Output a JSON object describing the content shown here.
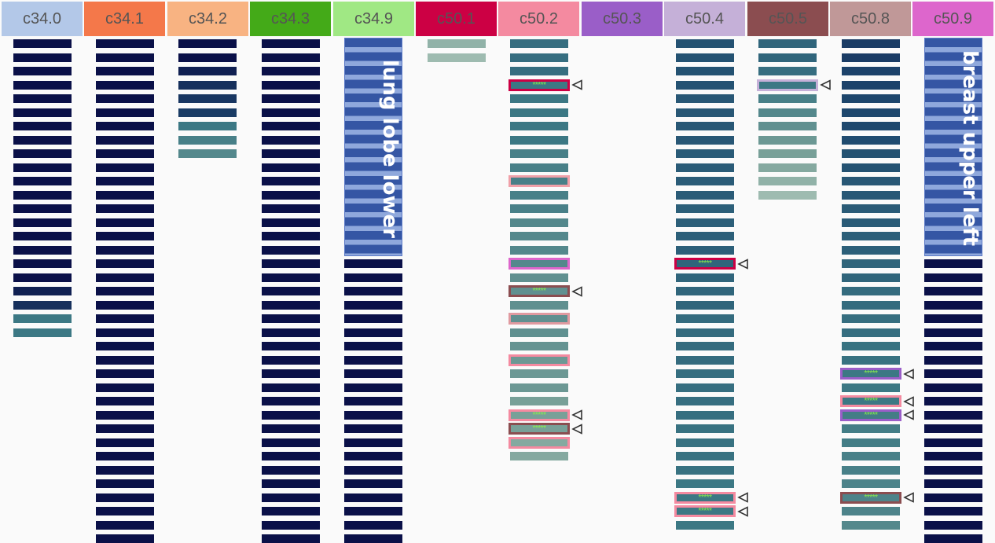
{
  "chart_data": {
    "type": "heatmap",
    "title": "",
    "columns": [
      {
        "code": "c34.0",
        "color": "#b3c8e8",
        "cells": [
          0,
          0,
          0,
          0,
          0,
          0,
          0,
          0,
          0,
          0,
          0,
          0,
          0,
          0,
          0,
          0,
          0,
          0,
          0.05,
          0.1,
          0.55,
          0.55
        ],
        "highlights": []
      },
      {
        "code": "c34.1",
        "color": "#f4784a",
        "cells": [
          0,
          0,
          0,
          0,
          0,
          0,
          0,
          0,
          0,
          0,
          0,
          0,
          0,
          0,
          0,
          0,
          0,
          0,
          0,
          0,
          0,
          0,
          0,
          0,
          0,
          0,
          0,
          0,
          0,
          0,
          0,
          0,
          0,
          0,
          0,
          0,
          0
        ],
        "highlights": []
      },
      {
        "code": "c34.2",
        "color": "#f8b382",
        "cells": [
          0,
          0,
          0.05,
          0.1,
          0.15,
          0.2,
          0.55,
          0.6,
          0.65
        ],
        "highlights": []
      },
      {
        "code": "c34.3",
        "color": "#44aa18",
        "cells": [
          0,
          0,
          0,
          0,
          0,
          0,
          0,
          0,
          0,
          0,
          0,
          0,
          0,
          0,
          0,
          0,
          0,
          0,
          0,
          0,
          0,
          0,
          0,
          0,
          0,
          0,
          0,
          0,
          0,
          0,
          0,
          0,
          0,
          0,
          0,
          0,
          0
        ],
        "highlights": []
      },
      {
        "code": "c34.9",
        "color": "#a0e884",
        "cells": [
          0,
          0,
          0,
          0,
          0,
          0,
          0,
          0,
          0,
          0,
          0,
          0,
          0,
          0,
          0,
          0,
          0,
          0,
          0,
          0,
          0,
          0,
          0,
          0,
          0,
          0,
          0,
          0,
          0,
          0,
          0,
          0,
          0,
          0,
          0,
          0,
          0
        ],
        "highlights": [],
        "group_label": {
          "text": "lung lobe lower",
          "rows": 16
        }
      },
      {
        "code": "c50.1",
        "color": "#cc0044",
        "cells": [
          0.9,
          0.95
        ],
        "highlights": []
      },
      {
        "code": "c50.2",
        "color": "#f48aa0",
        "cells": [
          0.5,
          0.5,
          0.5,
          0.55,
          0.55,
          0.55,
          0.55,
          0.55,
          0.6,
          0.6,
          0.6,
          0.6,
          0.6,
          0.65,
          0.65,
          0.65,
          0.65,
          0.7,
          0.7,
          0.7,
          0.7,
          0.7,
          0.72,
          0.75,
          0.75,
          0.75,
          0.8,
          0.8,
          0.8,
          0.85,
          0.85
        ],
        "highlights": [
          {
            "row": 3,
            "border": "#cc0044",
            "stars": "*****",
            "marker": true
          },
          {
            "row": 10,
            "border": "#f0a0a8",
            "stars": "",
            "marker": false
          },
          {
            "row": 16,
            "border": "#dd66cc",
            "stars": "",
            "marker": false
          },
          {
            "row": 18,
            "border": "#8b4d50",
            "stars": "*****",
            "marker": true
          },
          {
            "row": 20,
            "border": "#e09aa0",
            "stars": "",
            "marker": false
          },
          {
            "row": 23,
            "border": "#f48aa0",
            "stars": "",
            "marker": false
          },
          {
            "row": 27,
            "border": "#f48aa0",
            "stars": "*****",
            "marker": true
          },
          {
            "row": 28,
            "border": "#8b4d50",
            "stars": "*****",
            "marker": true
          },
          {
            "row": 29,
            "border": "#f48aa0",
            "stars": "",
            "marker": false
          }
        ]
      },
      {
        "code": "c50.3",
        "color": "#9a5ec8",
        "cells": [],
        "highlights": []
      },
      {
        "code": "c50.4",
        "color": "#c5b0d8",
        "cells": [
          0.35,
          0.35,
          0.35,
          0.35,
          0.38,
          0.38,
          0.38,
          0.38,
          0.4,
          0.4,
          0.4,
          0.4,
          0.42,
          0.42,
          0.42,
          0.42,
          0.45,
          0.45,
          0.45,
          0.45,
          0.48,
          0.48,
          0.48,
          0.48,
          0.5,
          0.5,
          0.5,
          0.5,
          0.52,
          0.52,
          0.52,
          0.52,
          0.55,
          0.55,
          0.55,
          0.55
        ],
        "highlights": [
          {
            "row": 16,
            "border": "#cc0044",
            "stars": "*****",
            "marker": true
          },
          {
            "row": 33,
            "border": "#f48aa0",
            "stars": "*****",
            "marker": true
          },
          {
            "row": 34,
            "border": "#f48aa0",
            "stars": "*****",
            "marker": true
          }
        ]
      },
      {
        "code": "c50.5",
        "color": "#8b4d50",
        "cells": [
          0.45,
          0.45,
          0.5,
          0.55,
          0.6,
          0.65,
          0.7,
          0.75,
          0.8,
          0.85,
          0.9,
          0.95
        ],
        "highlights": [
          {
            "row": 3,
            "border": "#c5b0d8",
            "stars": "",
            "marker": true
          }
        ]
      },
      {
        "code": "c50.8",
        "color": "#c09898",
        "cells": [
          0.2,
          0.2,
          0.25,
          0.25,
          0.28,
          0.3,
          0.3,
          0.32,
          0.35,
          0.35,
          0.38,
          0.38,
          0.4,
          0.4,
          0.42,
          0.42,
          0.45,
          0.45,
          0.48,
          0.48,
          0.5,
          0.5,
          0.52,
          0.52,
          0.55,
          0.55,
          0.55,
          0.58,
          0.58,
          0.58,
          0.6,
          0.6,
          0.62,
          0.62,
          0.62,
          0.65
        ],
        "highlights": [
          {
            "row": 24,
            "border": "#9a5ec8",
            "stars": "*****",
            "marker": true
          },
          {
            "row": 26,
            "border": "#f48aa0",
            "stars": "*****",
            "marker": true
          },
          {
            "row": 27,
            "border": "#9a5ec8",
            "stars": "*****",
            "marker": true
          },
          {
            "row": 33,
            "border": "#8b4d50",
            "stars": "*****",
            "marker": true
          }
        ]
      },
      {
        "code": "c50.9",
        "color": "#dd66cc",
        "cells": [
          0,
          0,
          0,
          0,
          0,
          0,
          0,
          0,
          0,
          0,
          0,
          0,
          0,
          0,
          0,
          0,
          0,
          0,
          0,
          0,
          0,
          0,
          0,
          0,
          0,
          0,
          0,
          0,
          0,
          0,
          0,
          0,
          0,
          0,
          0,
          0,
          0
        ],
        "highlights": [],
        "group_label": {
          "text": "breast upper left",
          "rows": 16
        }
      }
    ]
  },
  "marker_icon": "triangle-pointer-icon"
}
